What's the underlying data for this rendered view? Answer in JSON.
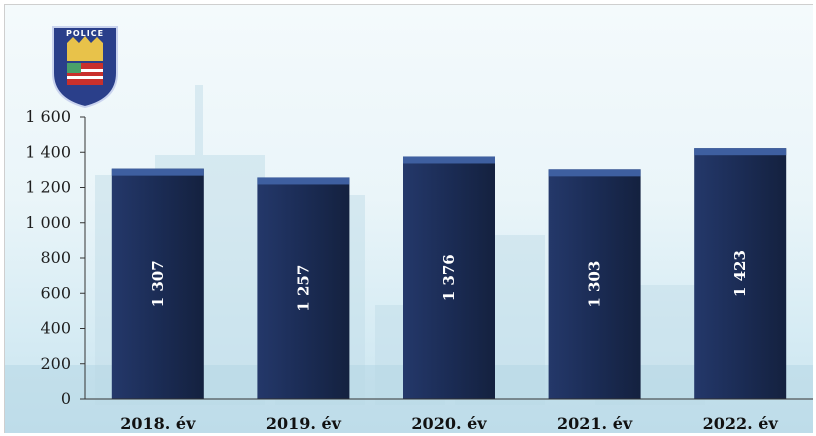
{
  "logo": {
    "text": "POLICE",
    "icon": "police-badge-icon"
  },
  "colors": {
    "bar": "#1b2c55",
    "bar_top": "#3e5fa0",
    "background": "#e4f2f8"
  },
  "chart_data": {
    "type": "bar",
    "title": "",
    "xlabel": "",
    "ylabel": "",
    "categories": [
      "2018. év",
      "2019. év",
      "2020. év",
      "2021. év",
      "2022. év"
    ],
    "values": [
      1307,
      1257,
      1376,
      1303,
      1423
    ],
    "value_labels": [
      "1 307",
      "1 257",
      "1 376",
      "1 303",
      "1 423"
    ],
    "yticks": [
      0,
      200,
      400,
      600,
      800,
      1000,
      1200,
      1400,
      1600
    ],
    "ytick_labels": [
      "0",
      "200",
      "400",
      "600",
      "800",
      "1 000",
      "1 200",
      "1 400",
      "1 600"
    ],
    "ylim": [
      0,
      1600
    ],
    "grid": false,
    "legend": "none"
  }
}
